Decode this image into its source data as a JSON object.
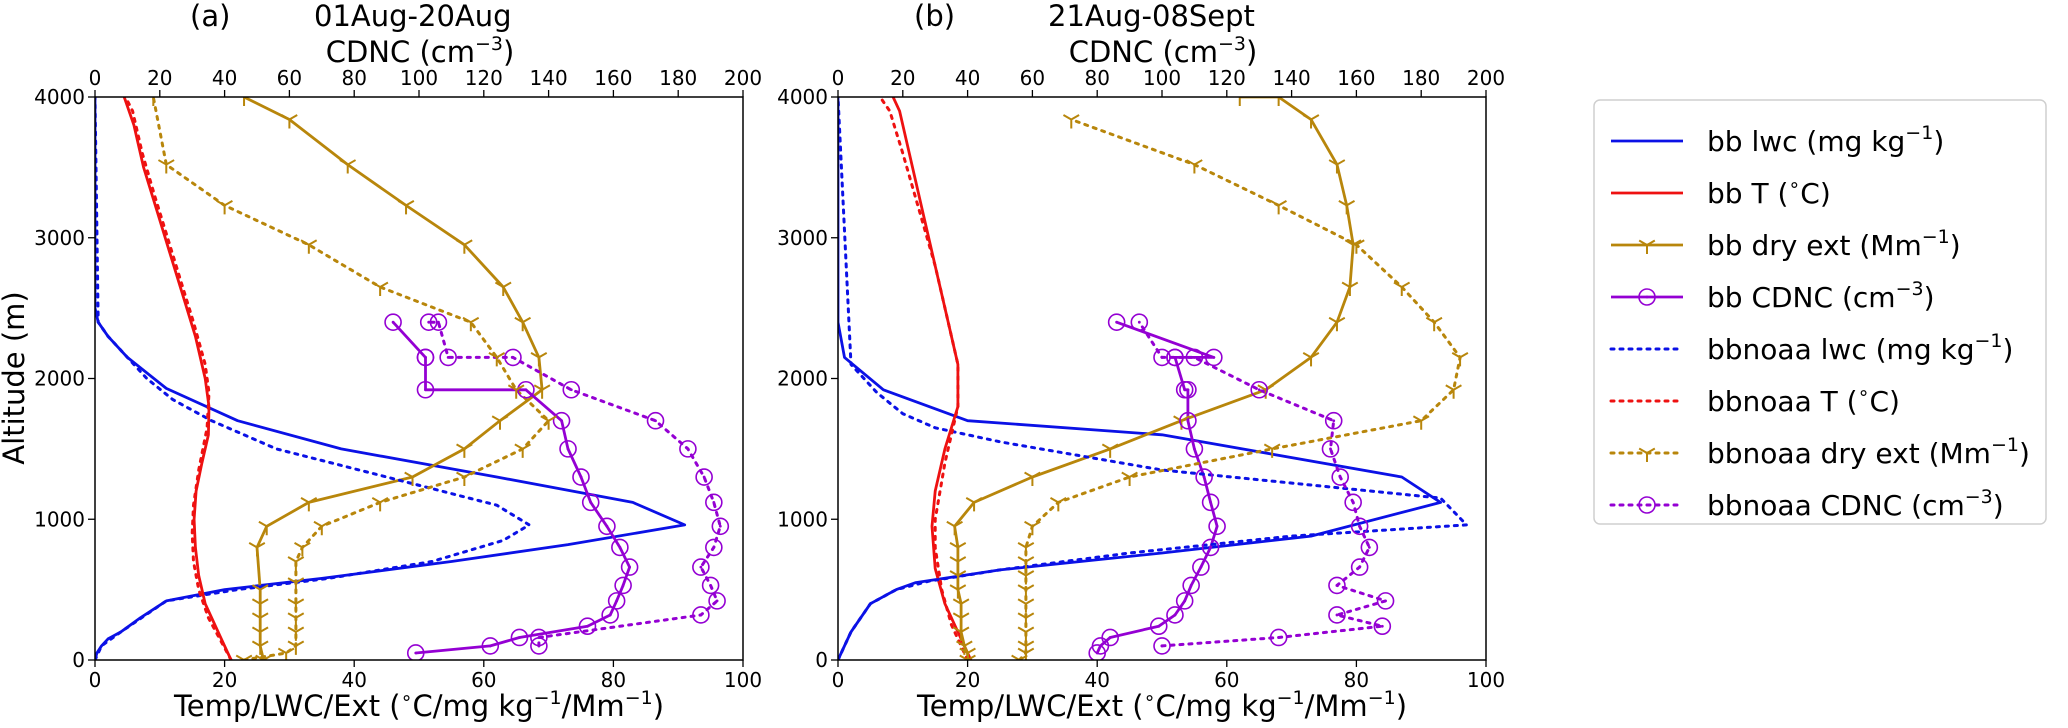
{
  "colors": {
    "lwc": "#0b11e6",
    "temp": "#ee1111",
    "ext": "#b8860b",
    "cdnc": "#9400d3"
  },
  "legend": {
    "placement": "right, outside axes",
    "entries": [
      {
        "text_pre": "bb lwc (mg kg",
        "sup": "−1",
        "text_post": ")",
        "var": "lwc",
        "dash": "solid",
        "marker": "none"
      },
      {
        "text_pre": "bb T (",
        "sup": "∘",
        "text_post": "C)",
        "var": "temp",
        "dash": "solid",
        "marker": "none"
      },
      {
        "text_pre": "bb dry ext (Mm",
        "sup": "−1",
        "text_post": ")",
        "var": "ext",
        "dash": "solid",
        "marker": "tri"
      },
      {
        "text_pre": "bb CDNC (cm",
        "sup": "−3",
        "text_post": ")",
        "var": "cdnc",
        "dash": "solid",
        "marker": "circle"
      },
      {
        "text_pre": "bbnoaa lwc (mg kg",
        "sup": "−1",
        "text_post": ")",
        "var": "lwc",
        "dash": "dotted",
        "marker": "none"
      },
      {
        "text_pre": "bbnoaa T (",
        "sup": "∘",
        "text_post": "C)",
        "var": "temp",
        "dash": "dotted",
        "marker": "none"
      },
      {
        "text_pre": "bbnoaa dry ext (Mm",
        "sup": "−1",
        "text_post": ")",
        "var": "ext",
        "dash": "dotted",
        "marker": "tri"
      },
      {
        "text_pre": "bbnoaa CDNC (cm",
        "sup": "−3",
        "text_post": ")",
        "var": "cdnc",
        "dash": "dotted",
        "marker": "circle"
      }
    ]
  },
  "chart_data": [
    {
      "type": "line",
      "panel_label": "(a)",
      "title": "01Aug-20Aug",
      "top_axis_label": {
        "pre": "CDNC (cm",
        "sup": "−3",
        "post": ")"
      },
      "xlabel": {
        "pre": "Temp/LWC/Ext (",
        "sup1": "∘",
        "mid": "C/mg kg",
        "sup2": "−1",
        "post": "/Mm",
        "sup3": "−1",
        "end": ")"
      },
      "ylabel": "Altitude (m)",
      "xlim": [
        0,
        100
      ],
      "x2lim": [
        0,
        200
      ],
      "ylim": [
        0,
        4000
      ],
      "xticks": [
        "0",
        "20",
        "40",
        "60",
        "80",
        "100"
      ],
      "x2ticks": [
        "0",
        "20",
        "40",
        "60",
        "80",
        "100",
        "120",
        "140",
        "160",
        "180",
        "200"
      ],
      "yticks": [
        "0",
        "1000",
        "2000",
        "3000",
        "4000"
      ],
      "series": [
        {
          "name": "bb lwc (mg kg-1)",
          "var": "lwc",
          "dash": "solid",
          "marker": "none",
          "x": [
            0,
            0.3,
            1,
            2,
            4,
            7,
            11,
            20,
            35,
            55,
            73,
            91,
            83,
            62,
            38,
            22,
            11,
            5,
            2,
            0.5,
            0,
            0,
            0
          ],
          "y": [
            0,
            50,
            100,
            150,
            200,
            300,
            420,
            500,
            580,
            700,
            820,
            960,
            1120,
            1300,
            1500,
            1700,
            1930,
            2150,
            2300,
            2400,
            2500,
            3000,
            4000
          ]
        },
        {
          "name": "bb T (°C)",
          "var": "temp",
          "dash": "solid",
          "marker": "none",
          "x": [
            21,
            19,
            17,
            16,
            15.5,
            15.3,
            15.6,
            16.5,
            17.5,
            17.6,
            17,
            15.5,
            13.5,
            11.5,
            9.5,
            7.5,
            6,
            4.5
          ],
          "y": [
            0,
            200,
            400,
            600,
            800,
            1000,
            1200,
            1400,
            1600,
            1800,
            2000,
            2300,
            2600,
            2900,
            3200,
            3500,
            3800,
            4000
          ]
        },
        {
          "name": "bb dry ext (Mm-1)",
          "var": "ext",
          "dash": "solid",
          "marker": "tri",
          "x": [
            26,
            25.5,
            25.5,
            25.5,
            25.5,
            25.5,
            25,
            26.5,
            33,
            49,
            57,
            62.5,
            69,
            68.5,
            66,
            63,
            57,
            48,
            39,
            30,
            23
          ],
          "y": [
            0,
            100,
            200,
            300,
            400,
            500,
            800,
            950,
            1120,
            1300,
            1500,
            1700,
            1920,
            2150,
            2400,
            2650,
            2950,
            3230,
            3520,
            3840,
            4000
          ]
        },
        {
          "name": "bb CDNC (cm-3)",
          "var": "cdnc",
          "dash": "solid",
          "marker": "circle",
          "x": [
            99,
            122,
            131,
            152,
            159,
            161,
            163,
            165,
            162,
            158,
            153,
            150,
            146,
            144,
            133,
            102,
            102,
            102,
            92
          ],
          "y": [
            50,
            100,
            160,
            240,
            320,
            420,
            530,
            660,
            800,
            950,
            1120,
            1300,
            1500,
            1700,
            1920,
            1920,
            2150,
            2150,
            2400
          ]
        },
        {
          "name": "bbnoaa lwc (mg kg-1)",
          "var": "lwc",
          "dash": "dotted",
          "marker": "none",
          "x": [
            0,
            1,
            4,
            11,
            22,
            36,
            52,
            63,
            67,
            62,
            45,
            28,
            18,
            12,
            8,
            5,
            2,
            0.5,
            0
          ],
          "y": [
            0,
            100,
            200,
            420,
            500,
            580,
            700,
            850,
            960,
            1100,
            1300,
            1500,
            1700,
            1850,
            2000,
            2150,
            2300,
            2400,
            4000
          ]
        },
        {
          "name": "bbnoaa T (°C)",
          "var": "temp",
          "dash": "dotted",
          "marker": "none",
          "x": [
            21,
            17.5,
            16,
            15.2,
            15,
            15.2,
            16,
            17.3,
            17.6,
            17,
            15.2,
            13.2,
            11.2,
            9.2,
            7.3,
            5.8,
            4.7
          ],
          "y": [
            0,
            300,
            500,
            700,
            900,
            1100,
            1350,
            1650,
            1900,
            2100,
            2400,
            2700,
            3000,
            3300,
            3600,
            3900,
            4000
          ]
        },
        {
          "name": "bbnoaa dry ext (Mm-1)",
          "var": "ext",
          "dash": "dotted",
          "marker": "tri",
          "x": [
            23,
            29.5,
            31,
            31,
            31,
            31,
            31,
            31,
            32,
            35,
            44,
            57,
            66,
            70,
            65,
            62,
            58,
            44,
            33,
            20,
            11,
            9
          ],
          "y": [
            0,
            50,
            100,
            200,
            300,
            400,
            550,
            700,
            800,
            950,
            1120,
            1300,
            1500,
            1700,
            1920,
            2150,
            2400,
            2650,
            2950,
            3230,
            3520,
            4000
          ]
        },
        {
          "name": "bbnoaa CDNC (cm-3)",
          "var": "cdnc",
          "dash": "dotted",
          "marker": "circle",
          "x": [
            137,
            137,
            187,
            192,
            190,
            187,
            191,
            193,
            191,
            188,
            183,
            173,
            147,
            129,
            109,
            106,
            103
          ],
          "y": [
            100,
            160,
            320,
            420,
            530,
            660,
            800,
            950,
            1120,
            1300,
            1500,
            1700,
            1920,
            2150,
            2150,
            2400,
            2400
          ]
        }
      ]
    },
    {
      "type": "line",
      "panel_label": "(b)",
      "title": "21Aug-08Sept",
      "top_axis_label": {
        "pre": "CDNC (cm",
        "sup": "−3",
        "post": ")"
      },
      "xlabel": {
        "pre": "Temp/LWC/Ext (",
        "sup1": "∘",
        "mid": "C/mg kg",
        "sup2": "−1",
        "post": "/Mm",
        "sup3": "−1",
        "end": ")"
      },
      "ylabel": "",
      "xlim": [
        0,
        100
      ],
      "x2lim": [
        0,
        200
      ],
      "ylim": [
        0,
        4000
      ],
      "xticks": [
        "0",
        "20",
        "40",
        "60",
        "80",
        "100"
      ],
      "x2ticks": [
        "0",
        "20",
        "40",
        "60",
        "80",
        "100",
        "120",
        "140",
        "160",
        "180",
        "200"
      ],
      "yticks": [
        "0",
        "1000",
        "2000",
        "3000",
        "4000"
      ],
      "series": [
        {
          "name": "bb lwc (mg kg-1)",
          "var": "lwc",
          "dash": "solid",
          "marker": "none",
          "x": [
            0,
            0.5,
            1,
            2,
            5,
            9,
            12,
            25,
            50,
            73,
            93,
            87,
            50,
            20,
            7,
            1,
            0,
            0
          ],
          "y": [
            0,
            50,
            100,
            200,
            400,
            500,
            550,
            640,
            760,
            880,
            1120,
            1300,
            1600,
            1700,
            1920,
            2150,
            2400,
            4000
          ]
        },
        {
          "name": "bb T (°C)",
          "var": "temp",
          "dash": "solid",
          "marker": "none",
          "x": [
            20.5,
            18.5,
            16.5,
            15,
            14.5,
            15,
            16.5,
            18.5,
            18.5,
            17,
            15,
            13,
            11,
            9.5,
            8.5
          ],
          "y": [
            0,
            200,
            400,
            650,
            950,
            1200,
            1500,
            1800,
            2100,
            2400,
            2800,
            3200,
            3600,
            3900,
            4000
          ]
        },
        {
          "name": "bb dry ext (Mm-1)",
          "var": "ext",
          "dash": "solid",
          "marker": "tri",
          "x": [
            20,
            20,
            19.5,
            19,
            19,
            19,
            18.5,
            18.5,
            18.5,
            18.5,
            18,
            21,
            30,
            42,
            53,
            66,
            73,
            77,
            79,
            79.5,
            78.5,
            77,
            73,
            68,
            62
          ],
          "y": [
            0,
            50,
            100,
            200,
            300,
            400,
            500,
            600,
            700,
            800,
            950,
            1120,
            1300,
            1500,
            1700,
            1920,
            2150,
            2400,
            2650,
            2950,
            3230,
            3520,
            3840,
            4000,
            4000
          ]
        },
        {
          "name": "bb CDNC (cm-3)",
          "var": "cdnc",
          "dash": "solid",
          "marker": "circle",
          "x": [
            80,
            81,
            84,
            99,
            104,
            107,
            109,
            112,
            115,
            117,
            115,
            113,
            110,
            108,
            108,
            107,
            104,
            104,
            116,
            86
          ],
          "y": [
            50,
            100,
            160,
            240,
            320,
            420,
            530,
            660,
            800,
            950,
            1120,
            1300,
            1500,
            1700,
            1920,
            1920,
            2150,
            2150,
            2150,
            2400
          ]
        },
        {
          "name": "bbnoaa lwc (mg kg-1)",
          "var": "lwc",
          "dash": "dotted",
          "marker": "none",
          "x": [
            0,
            1,
            2,
            5,
            9,
            14,
            25,
            45,
            70,
            97,
            93,
            50,
            25,
            15,
            10,
            6,
            2,
            0
          ],
          "y": [
            0,
            100,
            200,
            400,
            500,
            560,
            640,
            760,
            880,
            960,
            1150,
            1350,
            1550,
            1650,
            1750,
            1900,
            2100,
            4000
          ]
        },
        {
          "name": "bbnoaa T (°C)",
          "var": "temp",
          "dash": "dotted",
          "marker": "none",
          "x": [
            20,
            17.5,
            16,
            15,
            15,
            16.5,
            18.5,
            18.5,
            17,
            15,
            12.5,
            10,
            8,
            6.5
          ],
          "y": [
            0,
            250,
            500,
            800,
            1000,
            1400,
            1800,
            2100,
            2400,
            2800,
            3200,
            3600,
            3900,
            4000
          ]
        },
        {
          "name": "bbnoaa dry ext (Mm-1)",
          "var": "ext",
          "dash": "dotted",
          "marker": "tri",
          "x": [
            28,
            29,
            29,
            29,
            29,
            29,
            29,
            29,
            29,
            29,
            30,
            34,
            45,
            67,
            90,
            95,
            96,
            92,
            87,
            80,
            68,
            55,
            36
          ],
          "y": [
            0,
            50,
            100,
            200,
            300,
            400,
            500,
            600,
            700,
            800,
            950,
            1120,
            1300,
            1500,
            1700,
            1920,
            2150,
            2400,
            2650,
            2950,
            3230,
            3520,
            3840
          ]
        },
        {
          "name": "bbnoaa CDNC (cm-3)",
          "var": "cdnc",
          "dash": "dotted",
          "marker": "circle",
          "x": [
            100,
            136,
            168,
            154,
            169,
            154,
            161,
            164,
            161,
            159,
            155,
            152,
            153,
            130,
            110,
            100,
            93
          ],
          "y": [
            100,
            160,
            240,
            320,
            420,
            530,
            660,
            800,
            950,
            1120,
            1300,
            1500,
            1700,
            1920,
            2150,
            2150,
            2400
          ]
        }
      ]
    }
  ]
}
